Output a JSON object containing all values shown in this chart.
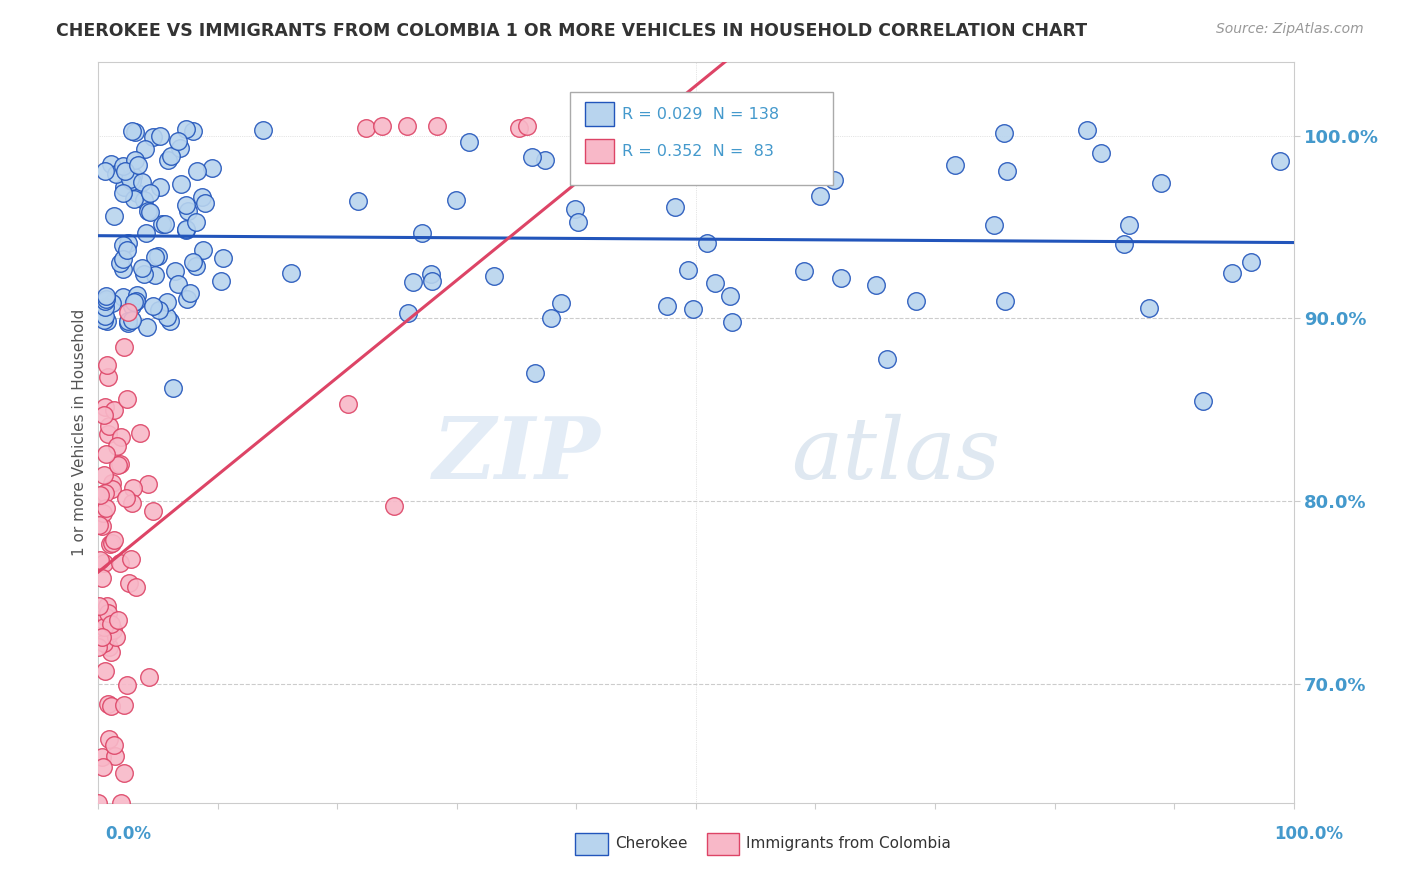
{
  "title": "CHEROKEE VS IMMIGRANTS FROM COLOMBIA 1 OR MORE VEHICLES IN HOUSEHOLD CORRELATION CHART",
  "source": "Source: ZipAtlas.com",
  "ylabel": "1 or more Vehicles in Household",
  "ytick_labels": [
    "100.0%",
    "90.0%",
    "80.0%",
    "70.0%"
  ],
  "ytick_values": [
    1.0,
    0.9,
    0.8,
    0.7
  ],
  "xlim": [
    0.0,
    1.0
  ],
  "ylim": [
    0.635,
    1.04
  ],
  "r_cherokee": 0.029,
  "n_cherokee": 138,
  "r_colombia": 0.352,
  "n_colombia": 83,
  "cherokee_color": "#b8d4ee",
  "colombia_color": "#f8b8c8",
  "trend_cherokee_color": "#2255bb",
  "trend_colombia_color": "#dd4466",
  "legend_label_cherokee": "Cherokee",
  "legend_label_colombia": "Immigrants from Colombia",
  "watermark_zip": "ZIP",
  "watermark_atlas": "atlas",
  "background_color": "#ffffff",
  "grid_color": "#cccccc",
  "title_color": "#333333",
  "axis_label_color": "#4499cc",
  "source_color": "#999999"
}
